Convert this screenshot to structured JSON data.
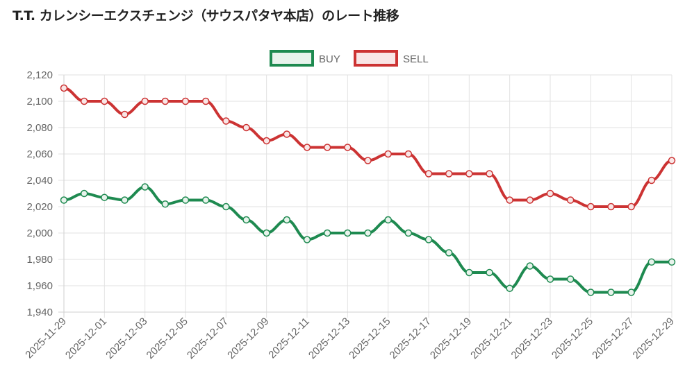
{
  "title": "T.T. カレンシーエクスチェンジ（サウスパタヤ本店）のレート推移",
  "chart_data": {
    "type": "line",
    "title": "T.T. カレンシーエクスチェンジ（サウスパタヤ本店）のレート推移",
    "xlabel": "",
    "ylabel": "",
    "ylim": [
      1940,
      2120
    ],
    "yticks": [
      "2,120",
      "2,100",
      "2,080",
      "2,060",
      "2,040",
      "2,020",
      "2,000",
      "1,980",
      "1,960",
      "1,940"
    ],
    "grid": true,
    "legend_position": "top-center",
    "x": [
      "2025-11-29",
      "2025-11-30",
      "2025-12-01",
      "2025-12-02",
      "2025-12-03",
      "2025-12-04",
      "2025-12-05",
      "2025-12-06",
      "2025-12-07",
      "2025-12-08",
      "2025-12-09",
      "2025-12-10",
      "2025-12-11",
      "2025-12-12",
      "2025-12-13",
      "2025-12-14",
      "2025-12-15",
      "2025-12-16",
      "2025-12-17",
      "2025-12-18",
      "2025-12-19",
      "2025-12-20",
      "2025-12-21",
      "2025-12-22",
      "2025-12-23",
      "2025-12-24",
      "2025-12-25",
      "2025-12-26",
      "2025-12-27",
      "2025-12-28",
      "2025-12-29"
    ],
    "xtick_labels": [
      "2025-11-29",
      "2025-12-01",
      "2025-12-03",
      "2025-12-05",
      "2025-12-07",
      "2025-12-09",
      "2025-12-11",
      "2025-12-13",
      "2025-12-15",
      "2025-12-17",
      "2025-12-19",
      "2025-12-21",
      "2025-12-23",
      "2025-12-25",
      "2025-12-27",
      "2025-12-29"
    ],
    "series": [
      {
        "name": "BUY",
        "color": "#1e8a50",
        "fill": "#e8f3ec",
        "values": [
          2025,
          2030,
          2027,
          2025,
          2035,
          2022,
          2025,
          2025,
          2020,
          2010,
          2000,
          2010,
          1995,
          2000,
          2000,
          2000,
          2010,
          2000,
          1995,
          1985,
          1970,
          1970,
          1958,
          1975,
          1965,
          1965,
          1955,
          1955,
          1955,
          1978,
          1978
        ]
      },
      {
        "name": "SELL",
        "color": "#cc3333",
        "fill": "#f9e6e6",
        "values": [
          2110,
          2100,
          2100,
          2090,
          2100,
          2100,
          2100,
          2100,
          2085,
          2080,
          2070,
          2075,
          2065,
          2065,
          2065,
          2055,
          2060,
          2060,
          2045,
          2045,
          2045,
          2045,
          2025,
          2025,
          2030,
          2025,
          2020,
          2020,
          2020,
          2040,
          2055
        ]
      }
    ]
  }
}
